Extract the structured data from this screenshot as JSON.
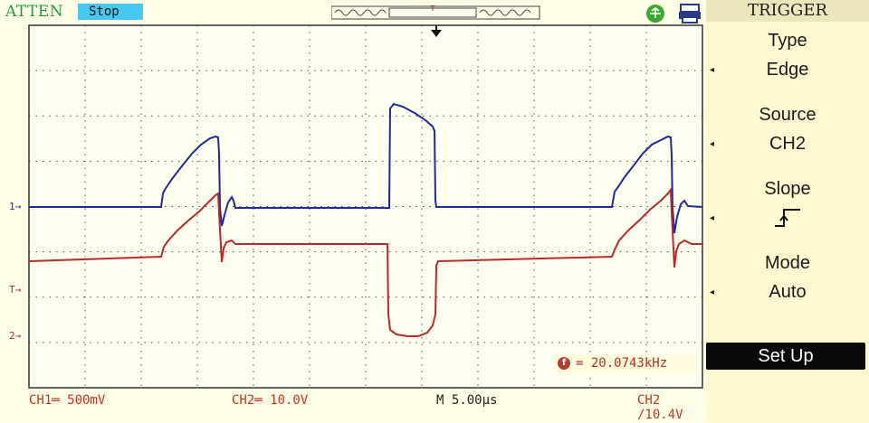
{
  "header": {
    "brand": "ATTEN",
    "status": "Stop"
  },
  "markers": {
    "ch1": "1",
    "trigger": "T",
    "ch2": "2"
  },
  "menu": {
    "title": "TRIGGER",
    "items": [
      {
        "label": "Type",
        "value": "Edge"
      },
      {
        "label": "Source",
        "value": "CH2"
      },
      {
        "label": "Slope",
        "value": ""
      },
      {
        "label": "Mode",
        "value": "Auto"
      }
    ],
    "action": "Set Up"
  },
  "footer": {
    "ch1_scale": "CH1═ 500mV",
    "ch2_scale": "CH2═ 10.0V",
    "timebase": "M 5.00μs",
    "trigger_info": "CH2 ∕10.4V"
  },
  "frequency": "= 20.0743kHz",
  "colors": {
    "ch1": "#1e2a9a",
    "ch2": "#b52a2a",
    "brand": "#1f9d3a",
    "status_bg": "#48c8f0",
    "grid": "#505050",
    "footer_text": "#c8321e"
  },
  "icons": {
    "usb": "usb-icon",
    "printer": "printer-icon",
    "trigger_pos": "trigger-position-icon"
  }
}
